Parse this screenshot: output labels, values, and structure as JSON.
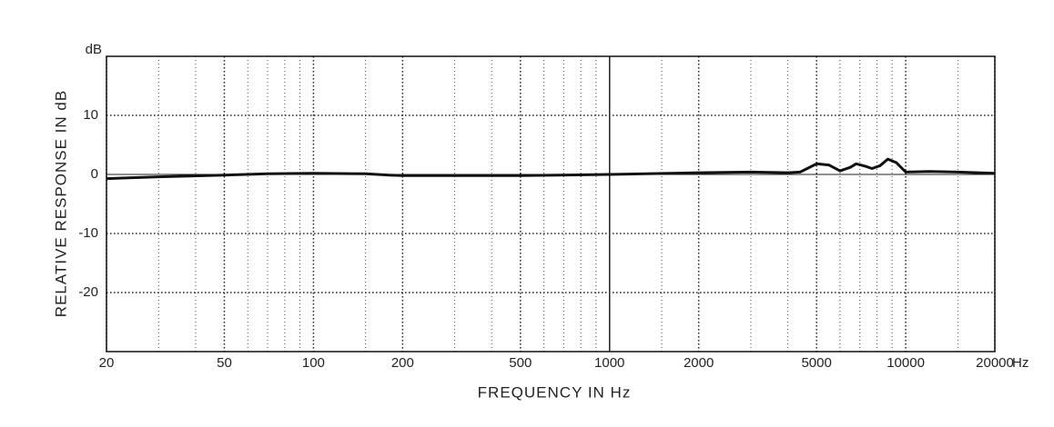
{
  "chart_data": {
    "type": "line",
    "xlabel": "FREQUENCY  IN  Hz",
    "ylabel": "RELATIVE RESPONSE  IN  dB",
    "x_unit": "Hz",
    "y_unit": "dB",
    "xscale": "log",
    "xlim": [
      20,
      20000
    ],
    "ylim": [
      -30,
      20
    ],
    "xticks": [
      20,
      50,
      100,
      200,
      500,
      1000,
      2000,
      5000,
      10000,
      20000
    ],
    "xminor": [
      30,
      40,
      60,
      70,
      80,
      90,
      150,
      300,
      400,
      600,
      700,
      800,
      900,
      1500,
      3000,
      4000,
      6000,
      7000,
      8000,
      9000,
      15000
    ],
    "yticks": [
      -20,
      -10,
      0,
      10
    ],
    "reference_lines": {
      "x": 1000,
      "y": 0
    },
    "grid": true,
    "series": [
      {
        "color": "#111111",
        "x": [
          20,
          30,
          50,
          70,
          100,
          150,
          180,
          200,
          300,
          500,
          1000,
          2000,
          3000,
          4000,
          4400,
          5000,
          5500,
          6000,
          6500,
          6800,
          7300,
          7700,
          8200,
          8700,
          9300,
          10000,
          12000,
          15000,
          20000
        ],
        "values": [
          -0.7,
          -0.4,
          -0.1,
          0.1,
          0.2,
          0.1,
          -0.1,
          -0.2,
          -0.2,
          -0.2,
          0,
          0.3,
          0.4,
          0.3,
          0.4,
          1.8,
          1.6,
          0.6,
          1.2,
          1.8,
          1.4,
          1.0,
          1.5,
          2.6,
          2.0,
          0.4,
          0.5,
          0.4,
          0.2
        ]
      }
    ]
  }
}
